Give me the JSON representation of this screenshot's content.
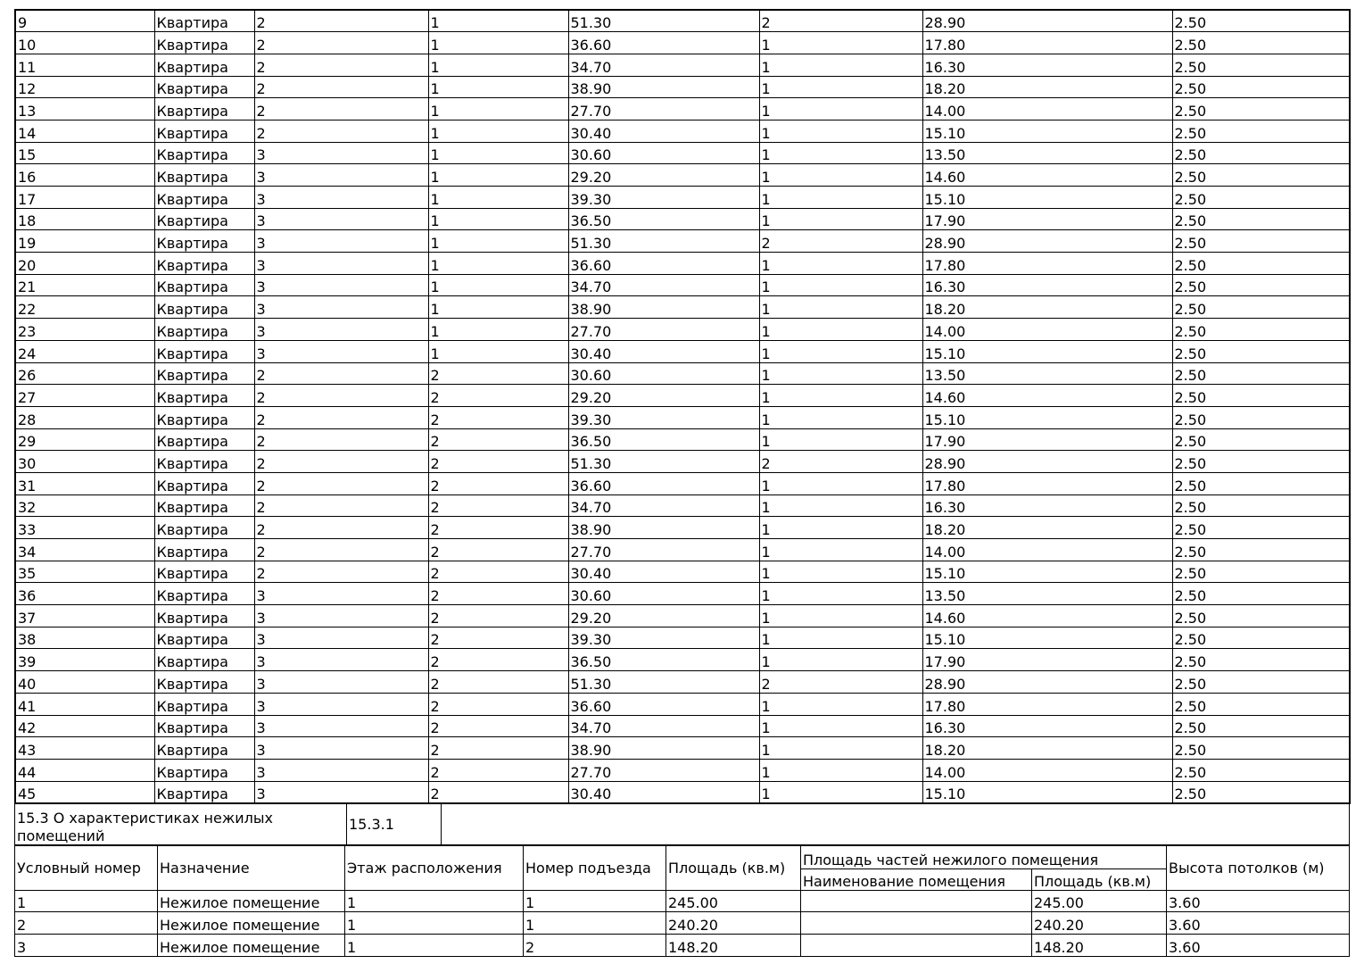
{
  "apartments": {
    "rows": [
      [
        "9",
        "Квартира",
        "2",
        "1",
        "51.30",
        "2",
        "28.90",
        "2.50"
      ],
      [
        "10",
        "Квартира",
        "2",
        "1",
        "36.60",
        "1",
        "17.80",
        "2.50"
      ],
      [
        "11",
        "Квартира",
        "2",
        "1",
        "34.70",
        "1",
        "16.30",
        "2.50"
      ],
      [
        "12",
        "Квартира",
        "2",
        "1",
        "38.90",
        "1",
        "18.20",
        "2.50"
      ],
      [
        "13",
        "Квартира",
        "2",
        "1",
        "27.70",
        "1",
        "14.00",
        "2.50"
      ],
      [
        "14",
        "Квартира",
        "2",
        "1",
        "30.40",
        "1",
        "15.10",
        "2.50"
      ],
      [
        "15",
        "Квартира",
        "3",
        "1",
        "30.60",
        "1",
        "13.50",
        "2.50"
      ],
      [
        "16",
        "Квартира",
        "3",
        "1",
        "29.20",
        "1",
        "14.60",
        "2.50"
      ],
      [
        "17",
        "Квартира",
        "3",
        "1",
        "39.30",
        "1",
        "15.10",
        "2.50"
      ],
      [
        "18",
        "Квартира",
        "3",
        "1",
        "36.50",
        "1",
        "17.90",
        "2.50"
      ],
      [
        "19",
        "Квартира",
        "3",
        "1",
        "51.30",
        "2",
        "28.90",
        "2.50"
      ],
      [
        "20",
        "Квартира",
        "3",
        "1",
        "36.60",
        "1",
        "17.80",
        "2.50"
      ],
      [
        "21",
        "Квартира",
        "3",
        "1",
        "34.70",
        "1",
        "16.30",
        "2.50"
      ],
      [
        "22",
        "Квартира",
        "3",
        "1",
        "38.90",
        "1",
        "18.20",
        "2.50"
      ],
      [
        "23",
        "Квартира",
        "3",
        "1",
        "27.70",
        "1",
        "14.00",
        "2.50"
      ],
      [
        "24",
        "Квартира",
        "3",
        "1",
        "30.40",
        "1",
        "15.10",
        "2.50"
      ],
      [
        "26",
        "Квартира",
        "2",
        "2",
        "30.60",
        "1",
        "13.50",
        "2.50"
      ],
      [
        "27",
        "Квартира",
        "2",
        "2",
        "29.20",
        "1",
        "14.60",
        "2.50"
      ],
      [
        "28",
        "Квартира",
        "2",
        "2",
        "39.30",
        "1",
        "15.10",
        "2.50"
      ],
      [
        "29",
        "Квартира",
        "2",
        "2",
        "36.50",
        "1",
        "17.90",
        "2.50"
      ],
      [
        "30",
        "Квартира",
        "2",
        "2",
        "51.30",
        "2",
        "28.90",
        "2.50"
      ],
      [
        "31",
        "Квартира",
        "2",
        "2",
        "36.60",
        "1",
        "17.80",
        "2.50"
      ],
      [
        "32",
        "Квартира",
        "2",
        "2",
        "34.70",
        "1",
        "16.30",
        "2.50"
      ],
      [
        "33",
        "Квартира",
        "2",
        "2",
        "38.90",
        "1",
        "18.20",
        "2.50"
      ],
      [
        "34",
        "Квартира",
        "2",
        "2",
        "27.70",
        "1",
        "14.00",
        "2.50"
      ],
      [
        "35",
        "Квартира",
        "2",
        "2",
        "30.40",
        "1",
        "15.10",
        "2.50"
      ],
      [
        "36",
        "Квартира",
        "3",
        "2",
        "30.60",
        "1",
        "13.50",
        "2.50"
      ],
      [
        "37",
        "Квартира",
        "3",
        "2",
        "29.20",
        "1",
        "14.60",
        "2.50"
      ],
      [
        "38",
        "Квартира",
        "3",
        "2",
        "39.30",
        "1",
        "15.10",
        "2.50"
      ],
      [
        "39",
        "Квартира",
        "3",
        "2",
        "36.50",
        "1",
        "17.90",
        "2.50"
      ],
      [
        "40",
        "Квартира",
        "3",
        "2",
        "51.30",
        "2",
        "28.90",
        "2.50"
      ],
      [
        "41",
        "Квартира",
        "3",
        "2",
        "36.60",
        "1",
        "17.80",
        "2.50"
      ],
      [
        "42",
        "Квартира",
        "3",
        "2",
        "34.70",
        "1",
        "16.30",
        "2.50"
      ],
      [
        "43",
        "Квартира",
        "3",
        "2",
        "38.90",
        "1",
        "18.20",
        "2.50"
      ],
      [
        "44",
        "Квартира",
        "3",
        "2",
        "27.70",
        "1",
        "14.00",
        "2.50"
      ],
      [
        "45",
        "Квартира",
        "3",
        "2",
        "30.40",
        "1",
        "15.10",
        "2.50"
      ]
    ]
  },
  "section": {
    "title": "15.3 О характеристиках нежилых помещений",
    "code": "15.3.1"
  },
  "nonresidential": {
    "header": [
      "Условный номер",
      "Назначение",
      "Этаж расположения",
      "Номер подъезда",
      "Площадь (кв.м)",
      "Площадь частей нежилого помещения",
      "Высота потолков (м)"
    ],
    "subheader": [
      "Наименование помещения",
      "Площадь (кв.м)"
    ],
    "rows": [
      [
        "1",
        "Нежилое помещение",
        "1",
        "1",
        "245.00",
        "245.00",
        "3.60"
      ],
      [
        "2",
        "Нежилое помещение",
        "1",
        "1",
        "240.20",
        "240.20",
        "3.60"
      ],
      [
        "3",
        "Нежилое помещение",
        "1",
        "2",
        "148.20",
        "148.20",
        "3.60"
      ]
    ]
  }
}
